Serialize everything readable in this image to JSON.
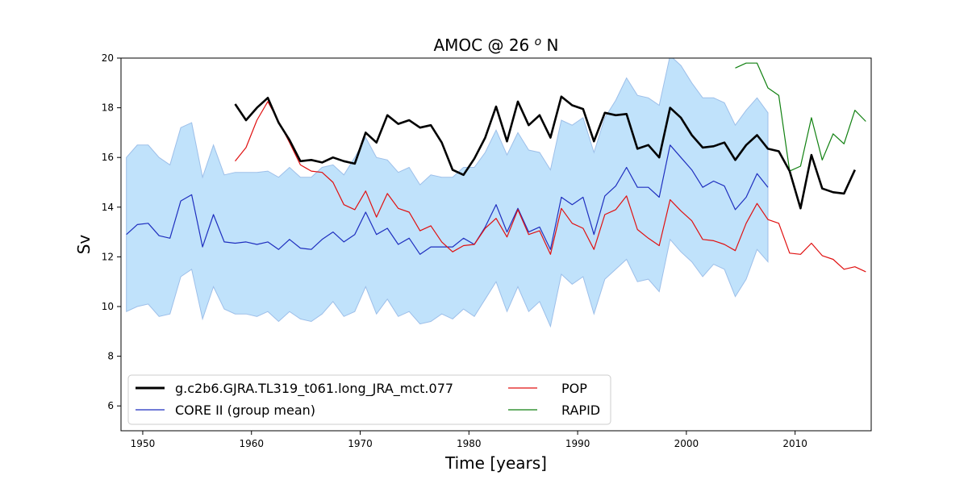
{
  "chart_data": {
    "type": "line",
    "title": "AMOC @ 26 ",
    "title_superscript": "o",
    "title_suffix": " N",
    "xlabel": "Time [years]",
    "ylabel": "Sv",
    "xlim": [
      1948,
      2017
    ],
    "ylim": [
      5,
      20
    ],
    "xticks": [
      1950,
      1960,
      1970,
      1980,
      1990,
      2000,
      2010
    ],
    "yticks": [
      6,
      8,
      10,
      12,
      14,
      16,
      18,
      20
    ],
    "grid": false,
    "legend_placement": "lower-left",
    "band": {
      "x": [
        1948.5,
        1949.5,
        1950.5,
        1951.5,
        1952.5,
        1953.5,
        1954.5,
        1955.5,
        1956.5,
        1957.5,
        1958.5,
        1959.5,
        1960.5,
        1961.5,
        1962.5,
        1963.5,
        1964.5,
        1965.5,
        1966.5,
        1967.5,
        1968.5,
        1969.5,
        1970.5,
        1971.5,
        1972.5,
        1973.5,
        1974.5,
        1975.5,
        1976.5,
        1977.5,
        1978.5,
        1979.5,
        1980.5,
        1981.5,
        1982.5,
        1983.5,
        1984.5,
        1985.5,
        1986.5,
        1987.5,
        1988.5,
        1989.5,
        1990.5,
        1991.5,
        1992.5,
        1993.5,
        1994.5,
        1995.5,
        1996.5,
        1997.5,
        1998.5,
        1999.5,
        2000.5,
        2001.5,
        2002.5,
        2003.5,
        2004.5,
        2005.5,
        2006.5,
        2007.5
      ],
      "upper": [
        16.0,
        16.5,
        16.5,
        16.0,
        15.7,
        17.2,
        17.4,
        15.2,
        16.5,
        15.3,
        15.4,
        15.4,
        15.4,
        15.45,
        15.2,
        15.6,
        15.2,
        15.2,
        15.6,
        15.7,
        15.3,
        16.0,
        16.8,
        16.0,
        15.9,
        15.4,
        15.6,
        14.9,
        15.3,
        15.2,
        15.2,
        15.6,
        15.6,
        16.2,
        17.1,
        16.1,
        17.0,
        16.3,
        16.2,
        15.5,
        17.5,
        17.3,
        17.6,
        16.2,
        17.6,
        18.3,
        19.2,
        18.5,
        18.4,
        18.1,
        20.1,
        19.7,
        19.0,
        18.4,
        18.4,
        18.2,
        17.3,
        17.9,
        18.4,
        17.8
      ],
      "lower": [
        9.8,
        10.0,
        10.1,
        9.6,
        9.7,
        11.2,
        11.5,
        9.5,
        10.8,
        9.9,
        9.7,
        9.7,
        9.6,
        9.8,
        9.4,
        9.8,
        9.5,
        9.4,
        9.7,
        10.2,
        9.6,
        9.8,
        10.8,
        9.7,
        10.3,
        9.6,
        9.8,
        9.3,
        9.4,
        9.7,
        9.5,
        9.9,
        9.6,
        10.3,
        11.0,
        9.8,
        10.8,
        9.8,
        10.2,
        9.2,
        11.3,
        10.9,
        11.2,
        9.7,
        11.1,
        11.5,
        11.9,
        11.0,
        11.1,
        10.6,
        12.7,
        12.2,
        11.8,
        11.2,
        11.7,
        11.5,
        10.4,
        11.1,
        12.3,
        11.8
      ]
    },
    "series": [
      {
        "name": "g.c2b6.GJRA.TL319_t061.long_JRA_mct.077",
        "color": "#000000",
        "x": [
          1958.5,
          1959.5,
          1960.5,
          1961.5,
          1962.5,
          1963.5,
          1964.5,
          1965.5,
          1966.5,
          1967.5,
          1968.5,
          1969.5,
          1970.5,
          1971.5,
          1972.5,
          1973.5,
          1974.5,
          1975.5,
          1976.5,
          1977.5,
          1978.5,
          1979.5,
          1980.5,
          1981.5,
          1982.5,
          1983.5,
          1984.5,
          1985.5,
          1986.5,
          1987.5,
          1988.5,
          1989.5,
          1990.5,
          1991.5,
          1992.5,
          1993.5,
          1994.5,
          1995.5,
          1996.5,
          1997.5,
          1998.5,
          1999.5,
          2000.5,
          2001.5,
          2002.5,
          2003.5,
          2004.5,
          2005.5,
          2006.5,
          2007.5,
          2008.5,
          2009.5,
          2010.5,
          2011.5,
          2012.5,
          2013.5,
          2014.5,
          2015.5
        ],
        "y": [
          18.15,
          17.5,
          18.0,
          18.4,
          17.4,
          16.7,
          15.85,
          15.9,
          15.8,
          16.0,
          15.85,
          15.75,
          17.0,
          16.6,
          17.7,
          17.35,
          17.5,
          17.2,
          17.3,
          16.6,
          15.5,
          15.3,
          15.95,
          16.8,
          18.05,
          16.65,
          18.25,
          17.3,
          17.7,
          16.8,
          18.45,
          18.1,
          17.95,
          16.65,
          17.8,
          17.7,
          17.75,
          16.35,
          16.5,
          16.0,
          18.0,
          17.6,
          16.9,
          16.4,
          16.45,
          16.6,
          15.9,
          16.5,
          16.9,
          16.35,
          16.25,
          15.45,
          13.95,
          16.1,
          14.75,
          14.6,
          14.55,
          15.5
        ]
      },
      {
        "name": "CORE II (group mean)",
        "color": "#1f2fbf",
        "x": [
          1948.5,
          1949.5,
          1950.5,
          1951.5,
          1952.5,
          1953.5,
          1954.5,
          1955.5,
          1956.5,
          1957.5,
          1958.5,
          1959.5,
          1960.5,
          1961.5,
          1962.5,
          1963.5,
          1964.5,
          1965.5,
          1966.5,
          1967.5,
          1968.5,
          1969.5,
          1970.5,
          1971.5,
          1972.5,
          1973.5,
          1974.5,
          1975.5,
          1976.5,
          1977.5,
          1978.5,
          1979.5,
          1980.5,
          1981.5,
          1982.5,
          1983.5,
          1984.5,
          1985.5,
          1986.5,
          1987.5,
          1988.5,
          1989.5,
          1990.5,
          1991.5,
          1992.5,
          1993.5,
          1994.5,
          1995.5,
          1996.5,
          1997.5,
          1998.5,
          1999.5,
          2000.5,
          2001.5,
          2002.5,
          2003.5,
          2004.5,
          2005.5,
          2006.5,
          2007.5
        ],
        "y": [
          12.9,
          13.3,
          13.35,
          12.85,
          12.75,
          14.25,
          14.5,
          12.4,
          13.7,
          12.6,
          12.55,
          12.6,
          12.5,
          12.6,
          12.3,
          12.7,
          12.35,
          12.3,
          12.7,
          13.0,
          12.6,
          12.9,
          13.8,
          12.9,
          13.15,
          12.5,
          12.75,
          12.1,
          12.4,
          12.4,
          12.4,
          12.75,
          12.5,
          13.2,
          14.1,
          13.0,
          13.95,
          13.0,
          13.2,
          12.3,
          14.4,
          14.1,
          14.4,
          12.9,
          14.45,
          14.85,
          15.6,
          14.8,
          14.8,
          14.4,
          16.5,
          16.0,
          15.5,
          14.8,
          15.05,
          14.85,
          13.9,
          14.4,
          15.35,
          14.8
        ]
      },
      {
        "name": "POP",
        "color": "#e01010",
        "x": [
          1958.5,
          1959.5,
          1960.5,
          1961.5,
          1962.5,
          1963.5,
          1964.5,
          1965.5,
          1966.5,
          1967.5,
          1968.5,
          1969.5,
          1970.5,
          1971.5,
          1972.5,
          1973.5,
          1974.5,
          1975.5,
          1976.5,
          1977.5,
          1978.5,
          1979.5,
          1980.5,
          1981.5,
          1982.5,
          1983.5,
          1984.5,
          1985.5,
          1986.5,
          1987.5,
          1988.5,
          1989.5,
          1990.5,
          1991.5,
          1992.5,
          1993.5,
          1994.5,
          1995.5,
          1996.5,
          1997.5,
          1998.5,
          1999.5,
          2000.5,
          2001.5,
          2002.5,
          2003.5,
          2004.5,
          2005.5,
          2006.5,
          2007.5,
          2008.5,
          2009.5,
          2010.5,
          2011.5,
          2012.5,
          2013.5,
          2014.5,
          2015.5,
          2016.5
        ],
        "y": [
          15.85,
          16.4,
          17.5,
          18.25,
          17.45,
          16.6,
          15.7,
          15.45,
          15.4,
          15.0,
          14.1,
          13.9,
          14.65,
          13.6,
          14.55,
          13.95,
          13.8,
          13.05,
          13.25,
          12.6,
          12.2,
          12.45,
          12.5,
          13.15,
          13.55,
          12.8,
          13.9,
          12.9,
          13.05,
          12.1,
          13.95,
          13.35,
          13.15,
          12.3,
          13.7,
          13.9,
          14.45,
          13.1,
          12.75,
          12.45,
          14.3,
          13.85,
          13.45,
          12.7,
          12.65,
          12.5,
          12.25,
          13.35,
          14.15,
          13.5,
          13.35,
          12.15,
          12.1,
          12.55,
          12.05,
          11.9,
          11.5,
          11.6,
          11.4
        ]
      },
      {
        "name": "RAPID",
        "color": "#108010",
        "x": [
          2004.5,
          2005.5,
          2006.5,
          2007.5,
          2008.5,
          2009.5,
          2010.5,
          2011.5,
          2012.5,
          2013.5,
          2014.5,
          2015.5,
          2016.5
        ],
        "y": [
          19.6,
          19.8,
          19.8,
          18.8,
          18.5,
          15.45,
          15.65,
          17.6,
          15.9,
          16.95,
          16.55,
          17.9,
          17.45
        ]
      }
    ]
  }
}
